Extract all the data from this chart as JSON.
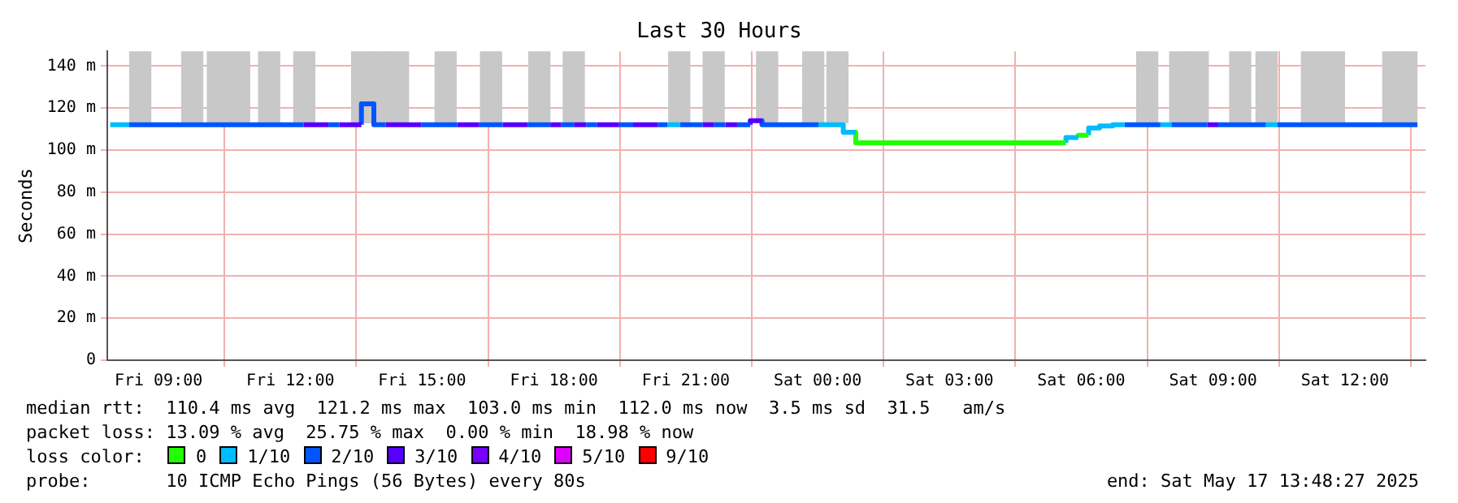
{
  "chart_data": {
    "type": "line",
    "title": "Last 30 Hours",
    "ylabel": "Seconds",
    "legend_title": "loss color:",
    "xlim": [
      "2025-05-16T07:50",
      "2025-05-17T13:50"
    ],
    "ylim": [
      0,
      147
    ],
    "xticks": [
      {
        "value": "2025-05-16T09:00",
        "label": "Fri 09:00"
      },
      {
        "value": "2025-05-16T12:00",
        "label": "Fri 12:00"
      },
      {
        "value": "2025-05-16T15:00",
        "label": "Fri 15:00"
      },
      {
        "value": "2025-05-16T18:00",
        "label": "Fri 18:00"
      },
      {
        "value": "2025-05-16T21:00",
        "label": "Fri 21:00"
      },
      {
        "value": "2025-05-17T00:00",
        "label": "Sat 00:00"
      },
      {
        "value": "2025-05-17T03:00",
        "label": "Sat 03:00"
      },
      {
        "value": "2025-05-17T06:00",
        "label": "Sat 06:00"
      },
      {
        "value": "2025-05-17T09:00",
        "label": "Sat 09:00"
      },
      {
        "value": "2025-05-17T12:00",
        "label": "Sat 12:00"
      }
    ],
    "yticks": [
      0,
      {
        "value": 20,
        "label": "20 m"
      },
      {
        "value": 40,
        "label": "40 m"
      },
      {
        "value": 60,
        "label": "60 m"
      },
      {
        "value": 80,
        "label": "80 m"
      },
      {
        "value": 100,
        "label": "100 m"
      },
      {
        "value": 120,
        "label": "120 m"
      },
      {
        "value": 140,
        "label": "140 m"
      }
    ],
    "grid": true,
    "legend": "bottom",
    "series": [
      {
        "type": "bar",
        "color": "#c8c8c8",
        "x": [
          "2025-05-16T08:35",
          "2025-05-16T09:46",
          "2025-05-16T10:21",
          "2025-05-16T10:50",
          "2025-05-16T11:31",
          "2025-05-16T12:19",
          "2025-05-16T13:38",
          "2025-05-16T14:02",
          "2025-05-16T14:27",
          "2025-05-16T15:32",
          "2025-05-16T16:34",
          "2025-05-16T17:40",
          "2025-05-16T18:27",
          "2025-05-16T20:51",
          "2025-05-16T21:38",
          "2025-05-16T22:51",
          "2025-05-16T23:54",
          "2025-05-17T00:27",
          "2025-05-17T07:30",
          "2025-05-17T08:15",
          "2025-05-17T08:39",
          "2025-05-17T09:37",
          "2025-05-17T10:13",
          "2025-05-17T11:15",
          "2025-05-17T11:45",
          "2025-05-17T13:06",
          "2025-05-17T13:24"
        ],
        "base": [
          113,
          113,
          113,
          113,
          113,
          113,
          113,
          113,
          113,
          113,
          113,
          113,
          113,
          113,
          113,
          113,
          113,
          113,
          113,
          113,
          113,
          113,
          113,
          113,
          113,
          113,
          113
        ],
        "values": [
          34,
          34,
          34,
          34,
          34,
          34,
          34,
          34,
          34,
          34,
          34,
          34,
          34,
          34,
          34,
          34,
          34,
          34,
          34,
          34,
          34,
          34,
          34,
          34,
          34,
          34,
          34
        ]
      },
      {
        "color": "#00bbff",
        "x": [
          "2025-05-16T07:54",
          "2025-05-16T08:20"
        ],
        "values": [
          112,
          112
        ]
      },
      {
        "color": "#0055ff",
        "x": [
          "2025-05-16T08:20",
          "2025-05-16T12:18"
        ],
        "values": [
          112,
          112
        ]
      },
      {
        "color": "#5500ff",
        "x": [
          "2025-05-16T12:18",
          "2025-05-16T12:52"
        ],
        "values": [
          112,
          112
        ]
      },
      {
        "color": "#0055ff",
        "x": [
          "2025-05-16T12:52",
          "2025-05-16T13:07"
        ],
        "values": [
          112,
          112
        ]
      },
      {
        "color": "#5500ff",
        "x": [
          "2025-05-16T13:07",
          "2025-05-16T13:37"
        ],
        "values": [
          112,
          112
        ]
      },
      {
        "color": "#0055ff",
        "x": [
          "2025-05-16T13:37",
          "2025-05-16T13:37",
          "2025-05-16T13:54",
          "2025-05-16T13:54",
          "2025-05-16T14:10"
        ],
        "values": [
          112,
          122,
          122,
          112,
          112
        ]
      },
      {
        "color": "#5500ff",
        "x": [
          "2025-05-16T14:10",
          "2025-05-16T14:59"
        ],
        "values": [
          112,
          112
        ]
      },
      {
        "color": "#0055ff",
        "x": [
          "2025-05-16T14:59",
          "2025-05-16T15:48"
        ],
        "values": [
          112,
          112
        ]
      },
      {
        "color": "#5500ff",
        "x": [
          "2025-05-16T15:48",
          "2025-05-16T16:18"
        ],
        "values": [
          112,
          112
        ]
      },
      {
        "color": "#0055ff",
        "x": [
          "2025-05-16T16:18",
          "2025-05-16T16:50"
        ],
        "values": [
          112,
          112
        ]
      },
      {
        "color": "#5500ff",
        "x": [
          "2025-05-16T16:50",
          "2025-05-16T17:24"
        ],
        "values": [
          112,
          112
        ]
      },
      {
        "color": "#0055ff",
        "x": [
          "2025-05-16T17:24",
          "2025-05-16T17:55"
        ],
        "values": [
          112,
          112
        ]
      },
      {
        "color": "#5500ff",
        "x": [
          "2025-05-16T17:55",
          "2025-05-16T18:10"
        ],
        "values": [
          112,
          112
        ]
      },
      {
        "color": "#0055ff",
        "x": [
          "2025-05-16T18:10",
          "2025-05-16T18:28"
        ],
        "values": [
          112,
          112
        ]
      },
      {
        "color": "#5500ff",
        "x": [
          "2025-05-16T18:28",
          "2025-05-16T18:44"
        ],
        "values": [
          112,
          112
        ]
      },
      {
        "color": "#0055ff",
        "x": [
          "2025-05-16T18:44",
          "2025-05-16T18:59"
        ],
        "values": [
          112,
          112
        ]
      },
      {
        "color": "#5500ff",
        "x": [
          "2025-05-16T18:59",
          "2025-05-16T19:29"
        ],
        "values": [
          112,
          112
        ]
      },
      {
        "color": "#0055ff",
        "x": [
          "2025-05-16T19:29",
          "2025-05-16T19:48"
        ],
        "values": [
          112,
          112
        ]
      },
      {
        "color": "#5500ff",
        "x": [
          "2025-05-16T19:48",
          "2025-05-16T20:22"
        ],
        "values": [
          112,
          112
        ]
      },
      {
        "color": "#0055ff",
        "x": [
          "2025-05-16T20:22",
          "2025-05-16T20:35"
        ],
        "values": [
          112,
          112
        ]
      },
      {
        "color": "#00bbff",
        "x": [
          "2025-05-16T20:35",
          "2025-05-16T20:52"
        ],
        "values": [
          112,
          112
        ]
      },
      {
        "color": "#0055ff",
        "x": [
          "2025-05-16T20:52",
          "2025-05-16T21:23"
        ],
        "values": [
          112,
          112
        ]
      },
      {
        "color": "#5500ff",
        "x": [
          "2025-05-16T21:23",
          "2025-05-16T21:38"
        ],
        "values": [
          112,
          112
        ]
      },
      {
        "color": "#0055ff",
        "x": [
          "2025-05-16T21:38",
          "2025-05-16T21:54"
        ],
        "values": [
          112,
          112
        ]
      },
      {
        "color": "#5500ff",
        "x": [
          "2025-05-16T21:54",
          "2025-05-16T22:10"
        ],
        "values": [
          112,
          112
        ]
      },
      {
        "color": "#0055ff",
        "x": [
          "2025-05-16T22:10",
          "2025-05-16T22:28"
        ],
        "values": [
          112,
          112
        ]
      },
      {
        "color": "#5500ff",
        "x": [
          "2025-05-16T22:28",
          "2025-05-16T22:28",
          "2025-05-16T22:44"
        ],
        "values": [
          112,
          114,
          114
        ]
      },
      {
        "color": "#0055ff",
        "x": [
          "2025-05-16T22:44",
          "2025-05-16T22:44",
          "2025-05-17T00:01"
        ],
        "values": [
          114,
          112,
          112
        ]
      },
      {
        "color": "#00bbff",
        "x": [
          "2025-05-17T00:01",
          "2025-05-17T00:35",
          "2025-05-17T00:35",
          "2025-05-17T00:52"
        ],
        "values": [
          112,
          112,
          108.5,
          108.5
        ]
      },
      {
        "color": "#22ff00",
        "x": [
          "2025-05-17T00:52",
          "2025-05-17T00:52",
          "2025-05-17T05:39"
        ],
        "values": [
          108.5,
          103.5,
          103.5
        ]
      },
      {
        "color": "#00bbff",
        "x": [
          "2025-05-17T05:39",
          "2025-05-17T05:39",
          "2025-05-17T05:56"
        ],
        "values": [
          103.5,
          106,
          106
        ]
      },
      {
        "color": "#22ff00",
        "x": [
          "2025-05-17T05:56",
          "2025-05-17T05:56",
          "2025-05-17T06:10"
        ],
        "values": [
          106,
          107,
          107
        ]
      },
      {
        "color": "#00bbff",
        "x": [
          "2025-05-17T06:10",
          "2025-05-17T06:10",
          "2025-05-17T06:25",
          "2025-05-17T06:25",
          "2025-05-17T06:43",
          "2025-05-17T06:43",
          "2025-05-17T06:59"
        ],
        "values": [
          107,
          110.5,
          110.5,
          111.5,
          111.5,
          112,
          112
        ]
      },
      {
        "color": "#0055ff",
        "x": [
          "2025-05-17T06:59",
          "2025-05-17T07:48"
        ],
        "values": [
          112,
          112
        ]
      },
      {
        "color": "#00bbff",
        "x": [
          "2025-05-17T07:48",
          "2025-05-17T08:03"
        ],
        "values": [
          112,
          112
        ]
      },
      {
        "color": "#0055ff",
        "x": [
          "2025-05-17T08:03",
          "2025-05-17T08:52"
        ],
        "values": [
          112,
          112
        ]
      },
      {
        "color": "#5500ff",
        "x": [
          "2025-05-17T08:52",
          "2025-05-17T09:07"
        ],
        "values": [
          112,
          112
        ]
      },
      {
        "color": "#0055ff",
        "x": [
          "2025-05-17T09:07",
          "2025-05-17T10:12"
        ],
        "values": [
          112,
          112
        ]
      },
      {
        "color": "#00bbff",
        "x": [
          "2025-05-17T10:12",
          "2025-05-17T10:28"
        ],
        "values": [
          112,
          112
        ]
      },
      {
        "color": "#0055ff",
        "x": [
          "2025-05-17T10:28",
          "2025-05-17T13:39"
        ],
        "values": [
          112,
          112
        ]
      },
      {
        "name": "0",
        "color": "#22ff00"
      },
      {
        "name": "1/10",
        "color": "#00bbff"
      },
      {
        "name": "2/10",
        "color": "#0055ff"
      },
      {
        "name": "3/10",
        "color": "#5500ff"
      },
      {
        "name": "4/10",
        "color": "#7700ff"
      },
      {
        "name": "5/10",
        "color": "#dd00ff"
      },
      {
        "name": "9/10",
        "color": "#ff0000"
      }
    ],
    "annotations": [
      "median rtt:  110.4 ms avg  121.2 ms max  103.0 ms min  112.0 ms now  3.5 ms sd  31.5   am/s",
      "packet loss: 13.09 % avg  25.75 % max  0.00 % min  18.98 % now",
      "probe:       10 ICMP Echo Pings (56 Bytes) every 80s",
      "end: Sat May 17 13:48:27 2025"
    ]
  }
}
